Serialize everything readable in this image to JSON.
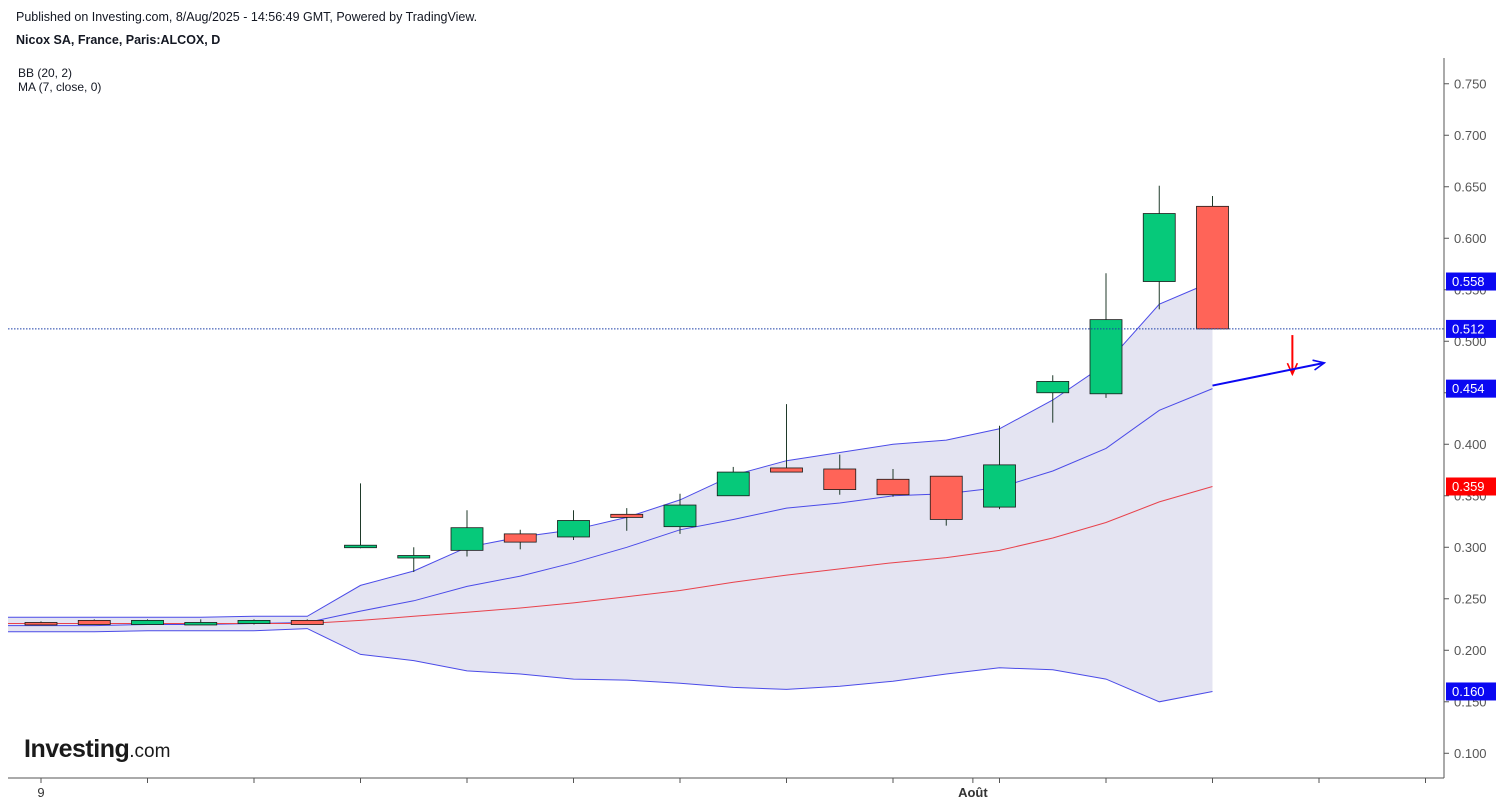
{
  "header": {
    "published": "Published on Investing.com, 8/Aug/2025 - 14:56:49 GMT, Powered by TradingView.",
    "symbol": "Nicox SA, France, Paris:ALCOX, D"
  },
  "indicators": {
    "bb": "BB (20, 2)",
    "ma": "MA (7, close, 0)"
  },
  "logo": {
    "main": "Investing",
    "suffix": ".com"
  },
  "colors": {
    "up": "#06c97a",
    "down": "#ff6458",
    "band_fill": "#e4e4f2",
    "band_line": "#4b4be8",
    "ma_line": "#e8424c",
    "price_line": "#1a3ea8",
    "tag_blue": "#0b08f2",
    "tag_red": "#ff0000",
    "arrow_red": "#ff0000",
    "arrow_blue": "#0b08f2"
  },
  "chart_data": {
    "type": "candlestick",
    "y_ticks": [
      "0.100",
      "0.150",
      "0.200",
      "0.250",
      "0.300",
      "0.350",
      "0.400",
      "0.450",
      "0.500",
      "0.550",
      "0.600",
      "0.650",
      "0.700",
      "0.750"
    ],
    "ylim": [
      0.076,
      0.775
    ],
    "x_labels": [
      {
        "label": "9",
        "index": 0
      },
      {
        "label": "Août",
        "index": 17.5
      }
    ],
    "candles": [
      {
        "o": 0.227,
        "h": 0.228,
        "l": 0.225,
        "c": 0.225
      },
      {
        "o": 0.229,
        "h": 0.23,
        "l": 0.225,
        "c": 0.225
      },
      {
        "o": 0.225,
        "h": 0.23,
        "l": 0.225,
        "c": 0.229
      },
      {
        "o": 0.225,
        "h": 0.23,
        "l": 0.225,
        "c": 0.227
      },
      {
        "o": 0.226,
        "h": 0.23,
        "l": 0.225,
        "c": 0.229
      },
      {
        "o": 0.229,
        "h": 0.23,
        "l": 0.225,
        "c": 0.225
      },
      {
        "o": 0.3,
        "h": 0.362,
        "l": 0.299,
        "c": 0.302
      },
      {
        "o": 0.29,
        "h": 0.3,
        "l": 0.276,
        "c": 0.292
      },
      {
        "o": 0.297,
        "h": 0.336,
        "l": 0.291,
        "c": 0.319
      },
      {
        "o": 0.313,
        "h": 0.317,
        "l": 0.298,
        "c": 0.305
      },
      {
        "o": 0.31,
        "h": 0.336,
        "l": 0.307,
        "c": 0.326
      },
      {
        "o": 0.332,
        "h": 0.338,
        "l": 0.316,
        "c": 0.329
      },
      {
        "o": 0.32,
        "h": 0.352,
        "l": 0.313,
        "c": 0.341
      },
      {
        "o": 0.35,
        "h": 0.378,
        "l": 0.35,
        "c": 0.373
      },
      {
        "o": 0.377,
        "h": 0.439,
        "l": 0.373,
        "c": 0.373
      },
      {
        "o": 0.376,
        "h": 0.39,
        "l": 0.351,
        "c": 0.356
      },
      {
        "o": 0.366,
        "h": 0.376,
        "l": 0.349,
        "c": 0.351
      },
      {
        "o": 0.369,
        "h": 0.369,
        "l": 0.321,
        "c": 0.327
      },
      {
        "o": 0.339,
        "h": 0.418,
        "l": 0.337,
        "c": 0.38
      },
      {
        "o": 0.45,
        "h": 0.467,
        "l": 0.421,
        "c": 0.461
      },
      {
        "o": 0.449,
        "h": 0.566,
        "l": 0.445,
        "c": 0.521
      },
      {
        "o": 0.558,
        "h": 0.651,
        "l": 0.531,
        "c": 0.624
      },
      {
        "o": 0.631,
        "h": 0.641,
        "l": 0.512,
        "c": 0.512
      }
    ],
    "bb_upper": [
      0.232,
      0.232,
      0.232,
      0.232,
      0.233,
      0.233,
      0.263,
      0.277,
      0.3,
      0.31,
      0.317,
      0.329,
      0.346,
      0.37,
      0.384,
      0.392,
      0.4,
      0.404,
      0.415,
      0.443,
      0.478,
      0.536,
      0.558
    ],
    "bb_mid": [
      0.224,
      0.224,
      0.225,
      0.225,
      0.226,
      0.227,
      0.238,
      0.248,
      0.262,
      0.272,
      0.285,
      0.3,
      0.317,
      0.327,
      0.338,
      0.343,
      0.35,
      0.352,
      0.358,
      0.374,
      0.396,
      0.433,
      0.454
    ],
    "bb_lower": [
      0.218,
      0.218,
      0.219,
      0.219,
      0.219,
      0.221,
      0.196,
      0.19,
      0.18,
      0.177,
      0.172,
      0.171,
      0.168,
      0.164,
      0.162,
      0.165,
      0.17,
      0.177,
      0.183,
      0.181,
      0.172,
      0.15,
      0.16
    ],
    "ma": [
      0.226,
      0.226,
      0.226,
      0.226,
      0.226,
      0.226,
      0.229,
      0.233,
      0.237,
      0.241,
      0.246,
      0.252,
      0.258,
      0.266,
      0.273,
      0.279,
      0.285,
      0.29,
      0.297,
      0.309,
      0.324,
      0.344,
      0.359
    ],
    "last_price": 0.512,
    "price_tags": [
      {
        "value": 0.558,
        "label": "0.558",
        "color": "#0b08f2"
      },
      {
        "value": 0.512,
        "label": "0.512",
        "color": "#0b08f2"
      },
      {
        "value": 0.454,
        "label": "0.454",
        "color": "#0b08f2"
      },
      {
        "value": 0.359,
        "label": "0.359",
        "color": "#ff0000"
      },
      {
        "value": 0.16,
        "label": "0.160",
        "color": "#0b08f2"
      }
    ],
    "annotations": [
      {
        "type": "arrow-down",
        "color": "#ff0000",
        "x_index": 23.5,
        "from": 0.506,
        "to": 0.468
      },
      {
        "type": "arrow",
        "color": "#0b08f2",
        "from_index": 22,
        "from": 0.457,
        "to_index": 24.1,
        "to": 0.479
      }
    ]
  }
}
